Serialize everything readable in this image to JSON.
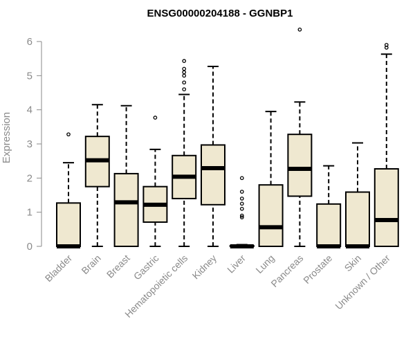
{
  "chart_data": {
    "type": "box",
    "title": "ENSG00000204188 - GGNBP1",
    "xlabel": "",
    "ylabel": "Expression",
    "ylim": [
      0,
      6
    ],
    "yticks": [
      "0",
      "1",
      "2",
      "3",
      "4",
      "5",
      "6"
    ],
    "box_fill": "#efe8d0",
    "categories": [
      "Bladder",
      "Brain",
      "Breast",
      "Gastric",
      "Hematopoietic cells",
      "Kidney",
      "Liver",
      "Lung",
      "Pancreas",
      "Prostate",
      "Skin",
      "Unknown / Other"
    ],
    "boxes": [
      {
        "min": 0,
        "q1": 0,
        "median": 0,
        "q3": 1.27,
        "max": 2.45,
        "outliers": [
          3.28
        ]
      },
      {
        "min": 0,
        "q1": 1.75,
        "median": 2.52,
        "q3": 3.22,
        "max": 4.15,
        "outliers": []
      },
      {
        "min": 0,
        "q1": 0,
        "median": 1.29,
        "q3": 2.13,
        "max": 4.12,
        "outliers": []
      },
      {
        "min": 0,
        "q1": 0.71,
        "median": 1.22,
        "q3": 1.75,
        "max": 2.84,
        "outliers": [
          3.77
        ]
      },
      {
        "min": 0,
        "q1": 1.4,
        "median": 2.04,
        "q3": 2.66,
        "max": 4.45,
        "outliers": [
          4.6,
          4.8,
          5.0,
          5.1,
          5.2,
          5.43
        ]
      },
      {
        "min": 0,
        "q1": 1.22,
        "median": 2.29,
        "q3": 2.97,
        "max": 5.27,
        "outliers": []
      },
      {
        "min": 0,
        "q1": 0,
        "median": 0,
        "q3": 0.02,
        "max": 0.05,
        "outliers": [
          0.85,
          0.9,
          1.1,
          1.25,
          1.4,
          1.6,
          2.0
        ]
      },
      {
        "min": 0,
        "q1": 0,
        "median": 0.56,
        "q3": 1.8,
        "max": 3.95,
        "outliers": []
      },
      {
        "min": 0,
        "q1": 1.47,
        "median": 2.27,
        "q3": 3.28,
        "max": 4.23,
        "outliers": [
          6.35
        ]
      },
      {
        "min": 0,
        "q1": 0,
        "median": 0,
        "q3": 1.24,
        "max": 2.36,
        "outliers": []
      },
      {
        "min": 0,
        "q1": 0,
        "median": 0,
        "q3": 1.59,
        "max": 3.03,
        "outliers": []
      },
      {
        "min": 0,
        "q1": 0,
        "median": 0.77,
        "q3": 2.27,
        "max": 5.63,
        "outliers": [
          5.82,
          5.9
        ]
      }
    ]
  }
}
